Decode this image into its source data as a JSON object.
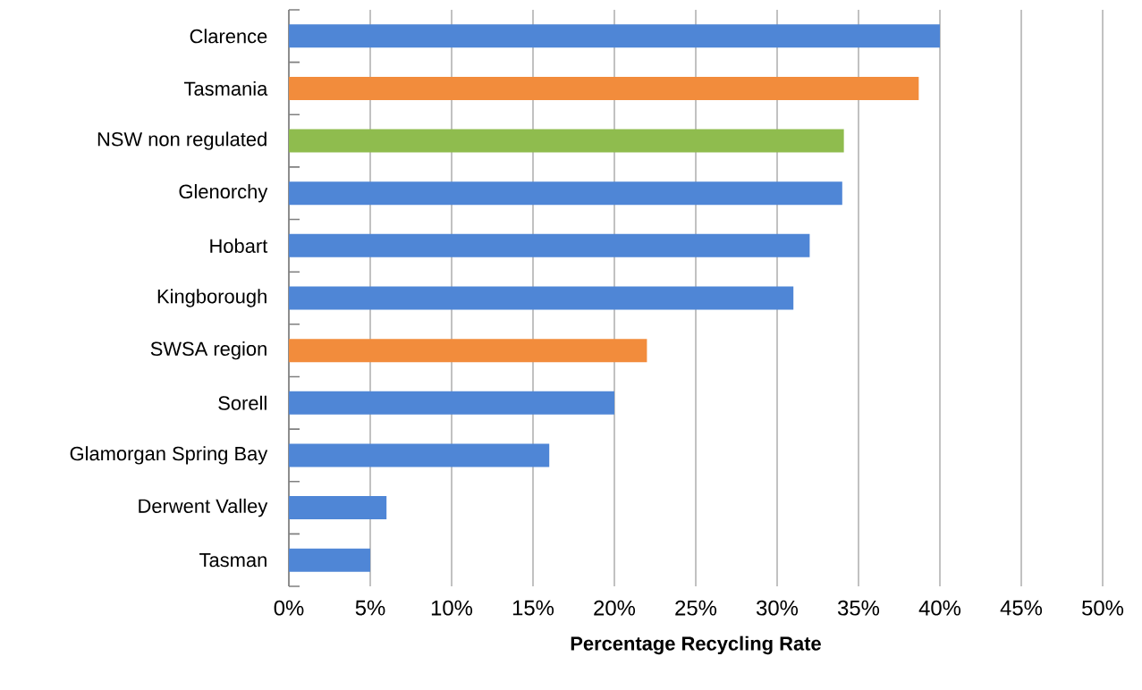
{
  "chart_data": {
    "type": "bar",
    "orientation": "horizontal",
    "xlabel": "Percentage Recycling Rate",
    "categories": [
      "Clarence",
      "Tasmania",
      "NSW non regulated",
      "Glenorchy",
      "Hobart",
      "Kingborough",
      "SWSA region",
      "Sorell",
      "Glamorgan Spring Bay",
      "Derwent Valley",
      "Tasman"
    ],
    "values": [
      40.0,
      38.7,
      34.1,
      34.0,
      32.0,
      31.0,
      22.0,
      20.0,
      16.0,
      6.0,
      5.0
    ],
    "colors": [
      "#4f86d6",
      "#f28c3c",
      "#8fbc4e",
      "#4f86d6",
      "#4f86d6",
      "#4f86d6",
      "#f28c3c",
      "#4f86d6",
      "#4f86d6",
      "#4f86d6",
      "#4f86d6"
    ],
    "xlim": [
      0,
      50
    ],
    "xticks": [
      {
        "value": 0,
        "label": "0%"
      },
      {
        "value": 5,
        "label": "5%"
      },
      {
        "value": 10,
        "label": "10%"
      },
      {
        "value": 15,
        "label": "15%"
      },
      {
        "value": 20,
        "label": "20%"
      },
      {
        "value": 25,
        "label": "25%"
      },
      {
        "value": 30,
        "label": "30%"
      },
      {
        "value": 35,
        "label": "35%"
      },
      {
        "value": 40,
        "label": "40%"
      },
      {
        "value": 45,
        "label": "45%"
      },
      {
        "value": 50,
        "label": "50%"
      }
    ],
    "grid": "x"
  }
}
